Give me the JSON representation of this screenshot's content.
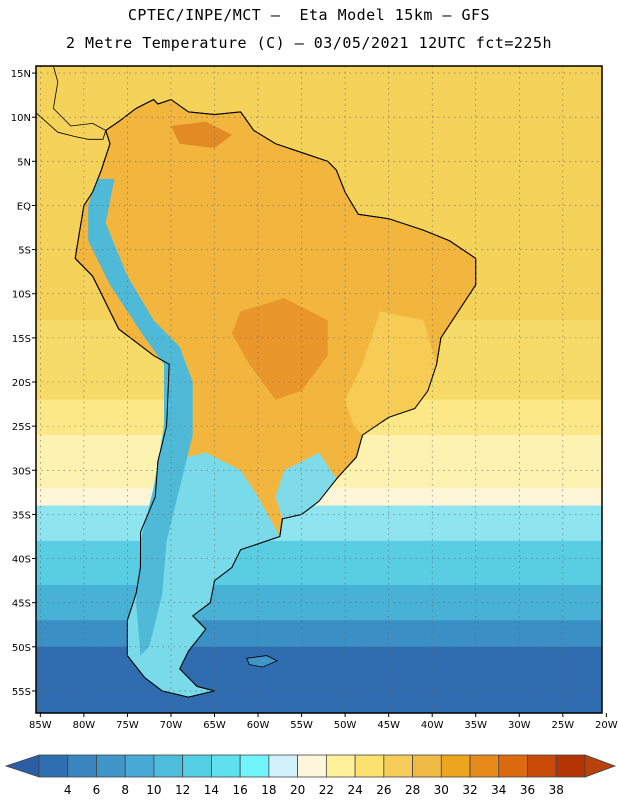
{
  "header": {
    "line1": "CPTEC/INPE/MCT –  Eta Model 15km – GFS",
    "line2": "2 Metre Temperature (C) – 03/05/2021 12UTC fct=225h"
  },
  "axes": {
    "lat_labels": [
      "15N",
      "10N",
      "5N",
      "EQ",
      "5S",
      "10S",
      "15S",
      "20S",
      "25S",
      "30S",
      "35S",
      "40S",
      "45S",
      "50S",
      "55S"
    ],
    "lat_values": [
      15,
      10,
      5,
      0,
      -5,
      -10,
      -15,
      -20,
      -25,
      -30,
      -35,
      -40,
      -45,
      -50,
      -55
    ],
    "lon_labels": [
      "85W",
      "80W",
      "75W",
      "70W",
      "65W",
      "60W",
      "55W",
      "50W",
      "45W",
      "40W",
      "35W",
      "30W",
      "25W",
      "20W"
    ],
    "lon_values": [
      -85,
      -80,
      -75,
      -70,
      -65,
      -60,
      -55,
      -50,
      -45,
      -40,
      -35,
      -30,
      -25,
      -20
    ],
    "lon_range": [
      -85.5,
      -20.5
    ],
    "lat_range": [
      -57.5,
      15.8
    ]
  },
  "colorbar": {
    "labels": [
      "4",
      "6",
      "8",
      "10",
      "12",
      "14",
      "16",
      "18",
      "20",
      "22",
      "24",
      "26",
      "28",
      "30",
      "32",
      "34",
      "36",
      "38"
    ],
    "colors": [
      "#2f6fb0",
      "#3a85c0",
      "#3f97c9",
      "#48aad4",
      "#4dbddd",
      "#55cfe6",
      "#5fe0ee",
      "#6ff5fb",
      "#d2f2fb",
      "#fff6dc",
      "#fff09a",
      "#fde170",
      "#f6cd58",
      "#f0bb44",
      "#eda51e",
      "#e68a1a",
      "#dd6a10",
      "#c94a08",
      "#b53405"
    ],
    "low_color": "#2c5ea6",
    "high_color": "#b8420e"
  },
  "map_fields": {
    "ocean_bands": [
      {
        "top": 15.8,
        "color": "#f5d35b"
      },
      {
        "top": -13,
        "color": "#f7db68"
      },
      {
        "top": -22,
        "color": "#fce886"
      },
      {
        "top": -26,
        "color": "#fdf2b0"
      },
      {
        "top": -32,
        "color": "#fff6d8"
      },
      {
        "top": -34,
        "color": "#8ee4ef"
      },
      {
        "top": -38,
        "color": "#59cde2"
      },
      {
        "top": -43,
        "color": "#47b2d5"
      },
      {
        "top": -47,
        "color": "#3a8fc4"
      },
      {
        "top": -50,
        "color": "#2f6db0"
      }
    ],
    "land_warm": "#f2b63e",
    "land_hot": "#e9962a",
    "land_mild": "#f6cc55",
    "andes_cold": "#4fb9d8",
    "patagonia": "#79dbe9"
  }
}
